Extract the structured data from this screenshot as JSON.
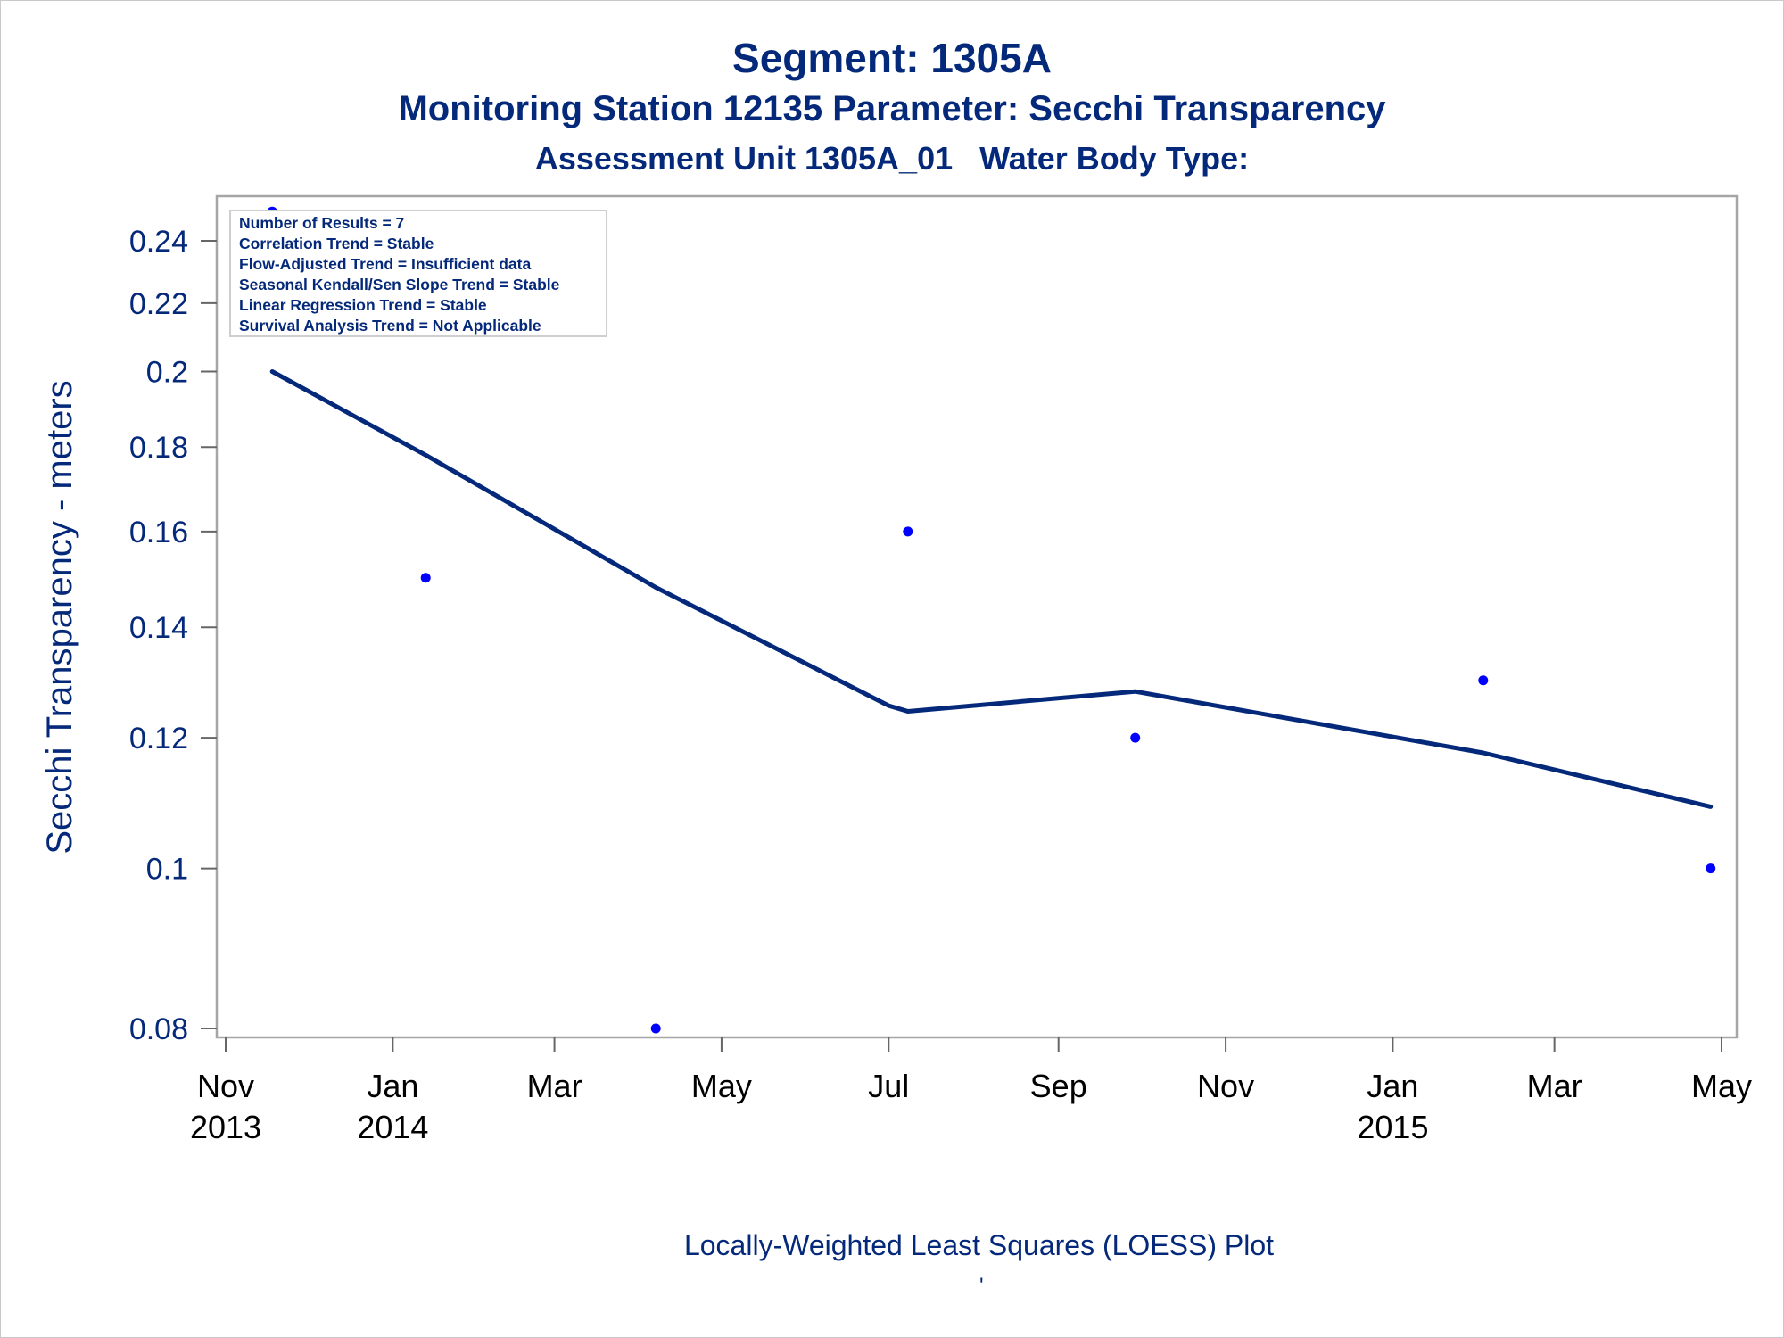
{
  "page": {
    "title": "Segment: 1305A",
    "subtitle": "Monitoring Station 12135 Parameter: Secchi Transparency",
    "subtitle2": "Assessment Unit 1305A_01   Water Body Type:",
    "footnote": "Locally-Weighted Least Squares (LOESS) Plot",
    "footnote_mark": "'"
  },
  "colors": {
    "title": "#05297a",
    "axis_text": "#05297a",
    "x_tick_text": "#000000",
    "frame": "#a6a6a6",
    "loess_line": "#05297a",
    "points": "#0000ff"
  },
  "chart_data": {
    "type": "scatter",
    "title": "",
    "xlabel": "",
    "ylabel": "Secchi Transparency - meters",
    "y_scale": "log",
    "ylim": [
      0.078,
      0.26
    ],
    "xlim": [
      "2013-11-01",
      "2015-05-01"
    ],
    "y_ticks": [
      {
        "value": 0.08,
        "label": "0.08"
      },
      {
        "value": 0.1,
        "label": "0.1"
      },
      {
        "value": 0.12,
        "label": "0.12"
      },
      {
        "value": 0.14,
        "label": "0.14"
      },
      {
        "value": 0.16,
        "label": "0.16"
      },
      {
        "value": 0.18,
        "label": "0.18"
      },
      {
        "value": 0.2,
        "label": "0.2"
      },
      {
        "value": 0.22,
        "label": "0.22"
      },
      {
        "value": 0.24,
        "label": "0.24"
      }
    ],
    "x_ticks": [
      {
        "date": "2013-11-01",
        "month": "Nov",
        "year": "2013"
      },
      {
        "date": "2014-01-01",
        "month": "Jan",
        "year": "2014"
      },
      {
        "date": "2014-03-01",
        "month": "Mar",
        "year": ""
      },
      {
        "date": "2014-05-01",
        "month": "May",
        "year": ""
      },
      {
        "date": "2014-07-01",
        "month": "Jul",
        "year": ""
      },
      {
        "date": "2014-09-01",
        "month": "Sep",
        "year": ""
      },
      {
        "date": "2014-11-01",
        "month": "Nov",
        "year": ""
      },
      {
        "date": "2015-01-01",
        "month": "Jan",
        "year": "2015"
      },
      {
        "date": "2015-03-01",
        "month": "Mar",
        "year": ""
      },
      {
        "date": "2015-05-01",
        "month": "May",
        "year": ""
      }
    ],
    "series": [
      {
        "kind": "points",
        "points": [
          {
            "x": "2013-11-18",
            "y": 0.25
          },
          {
            "x": "2014-01-13",
            "y": 0.15
          },
          {
            "x": "2014-04-07",
            "y": 0.08
          },
          {
            "x": "2014-07-08",
            "y": 0.16
          },
          {
            "x": "2014-09-29",
            "y": 0.12
          },
          {
            "x": "2015-02-03",
            "y": 0.13
          },
          {
            "x": "2015-04-27",
            "y": 0.1
          }
        ]
      },
      {
        "kind": "loess",
        "points": [
          {
            "x": "2013-11-18",
            "y": 0.2
          },
          {
            "x": "2014-01-13",
            "y": 0.178
          },
          {
            "x": "2014-04-07",
            "y": 0.148
          },
          {
            "x": "2014-07-01",
            "y": 0.1255
          },
          {
            "x": "2014-07-08",
            "y": 0.1245
          },
          {
            "x": "2014-09-29",
            "y": 0.128
          },
          {
            "x": "2015-02-03",
            "y": 0.1175
          },
          {
            "x": "2015-04-27",
            "y": 0.109
          }
        ]
      }
    ],
    "inset": {
      "lines": [
        "Number of Results = 7",
        "Correlation Trend = Stable",
        "Flow-Adjusted Trend = Insufficient data",
        "Seasonal Kendall/Sen Slope Trend = Stable",
        "Linear Regression Trend = Stable",
        "Survival Analysis Trend = Not Applicable"
      ],
      "placement": "top-left"
    }
  }
}
